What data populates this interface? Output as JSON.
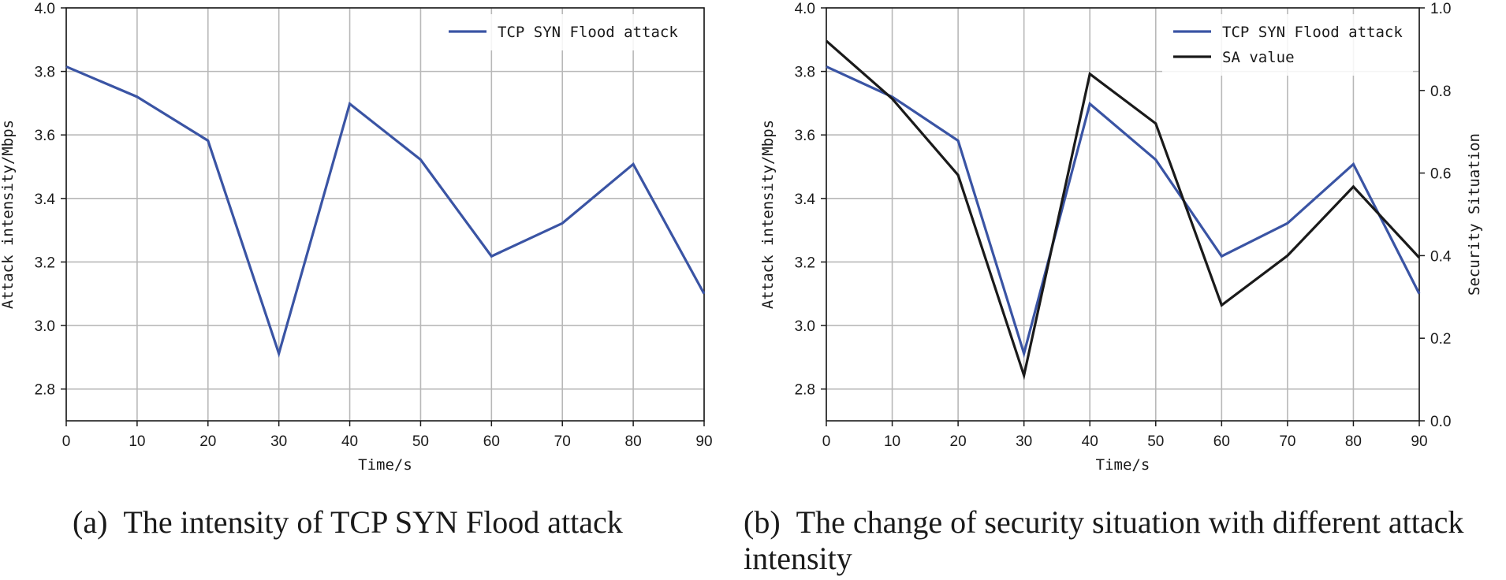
{
  "chart_data": [
    {
      "type": "line",
      "caption": "(a) The intensity of TCP SYN Flood attack",
      "x": [
        0,
        10,
        20,
        30,
        40,
        50,
        60,
        70,
        80,
        90
      ],
      "xlabel": "Time/s",
      "ylabel": "Attack intensity/Mbps",
      "xlim": [
        0,
        90
      ],
      "ylim": [
        2.7,
        4.0
      ],
      "xticks": [
        0,
        10,
        20,
        30,
        40,
        50,
        60,
        70,
        80,
        90
      ],
      "yticks": [
        2.8,
        3.0,
        3.2,
        3.4,
        3.6,
        3.8,
        4.0
      ],
      "grid": true,
      "legend_position": "top-right",
      "series": [
        {
          "name": "TCP SYN Flood attack",
          "color": "#3a54a4",
          "axis": "left",
          "values": [
            3.815,
            3.72,
            3.582,
            2.912,
            3.698,
            3.522,
            3.218,
            3.322,
            3.508,
            3.1
          ]
        }
      ]
    },
    {
      "type": "line",
      "caption": "(b) The change of security situation with different attack intensity",
      "x": [
        0,
        10,
        20,
        30,
        40,
        50,
        60,
        70,
        80,
        90
      ],
      "xlabel": "Time/s",
      "ylabel": "Attack intensity/Mbps",
      "ylabel_right": "Security Situation",
      "xlim": [
        0,
        90
      ],
      "ylim": [
        2.7,
        4.0
      ],
      "ylim_right": [
        0.0,
        1.0
      ],
      "xticks": [
        0,
        10,
        20,
        30,
        40,
        50,
        60,
        70,
        80,
        90
      ],
      "yticks": [
        2.8,
        3.0,
        3.2,
        3.4,
        3.6,
        3.8,
        4.0
      ],
      "yticks_right": [
        0.0,
        0.2,
        0.4,
        0.6,
        0.8,
        1.0
      ],
      "grid": true,
      "legend_position": "top-right",
      "series": [
        {
          "name": "TCP SYN Flood attack",
          "color": "#3a54a4",
          "axis": "left",
          "values": [
            3.815,
            3.72,
            3.582,
            2.912,
            3.698,
            3.522,
            3.218,
            3.322,
            3.508,
            3.1
          ]
        },
        {
          "name": "SA value",
          "color": "#1a1a1a",
          "axis": "right",
          "values": [
            0.92,
            0.78,
            0.595,
            0.11,
            0.84,
            0.72,
            0.28,
            0.4,
            0.567,
            0.395
          ]
        }
      ]
    }
  ]
}
